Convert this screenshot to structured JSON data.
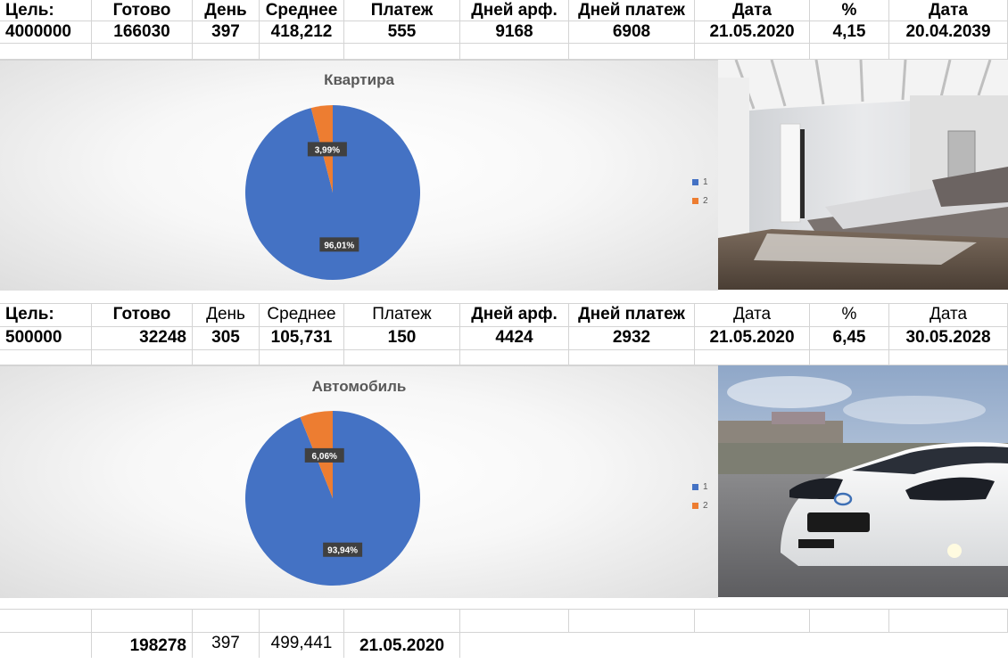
{
  "table1": {
    "headers": [
      "Цель:",
      "Готово",
      "День",
      "Среднее",
      "Платеж",
      "Дней арф.",
      "Дней платеж",
      "Дата",
      "%",
      "Дата"
    ],
    "values": [
      "4000000",
      "166030",
      "397",
      "418,212",
      "555",
      "9168",
      "6908",
      "21.05.2020",
      "4,15",
      "20.04.2039"
    ]
  },
  "table2": {
    "headers": [
      "Цель:",
      "Готово",
      "День",
      "Среднее",
      "Платеж",
      "Дней арф.",
      "Дней платеж",
      "Дата",
      "%",
      "Дата"
    ],
    "values": [
      "500000",
      "32248",
      "305",
      "105,731",
      "150",
      "4424",
      "2932",
      "21.05.2020",
      "6,45",
      "30.05.2028"
    ]
  },
  "summary": {
    "values": [
      "198278",
      "397",
      "499,441",
      "21.05.2020"
    ]
  },
  "chart_data": [
    {
      "type": "pie",
      "title": "Квартира",
      "categories": [
        "1",
        "2"
      ],
      "values": [
        96.01,
        3.99
      ],
      "labels": [
        "96,01%",
        "3,99%"
      ],
      "colors": [
        "#4472C4",
        "#ED7D31"
      ],
      "legend": "right"
    },
    {
      "type": "pie",
      "title": "Автомобиль",
      "categories": [
        "1",
        "2"
      ],
      "values": [
        93.94,
        6.06
      ],
      "labels": [
        "93,94%",
        "6,06%"
      ],
      "colors": [
        "#4472C4",
        "#ED7D31"
      ],
      "legend": "right"
    }
  ],
  "images": {
    "photo1": "bedroom-interior-photo",
    "photo2": "white-car-photo"
  }
}
